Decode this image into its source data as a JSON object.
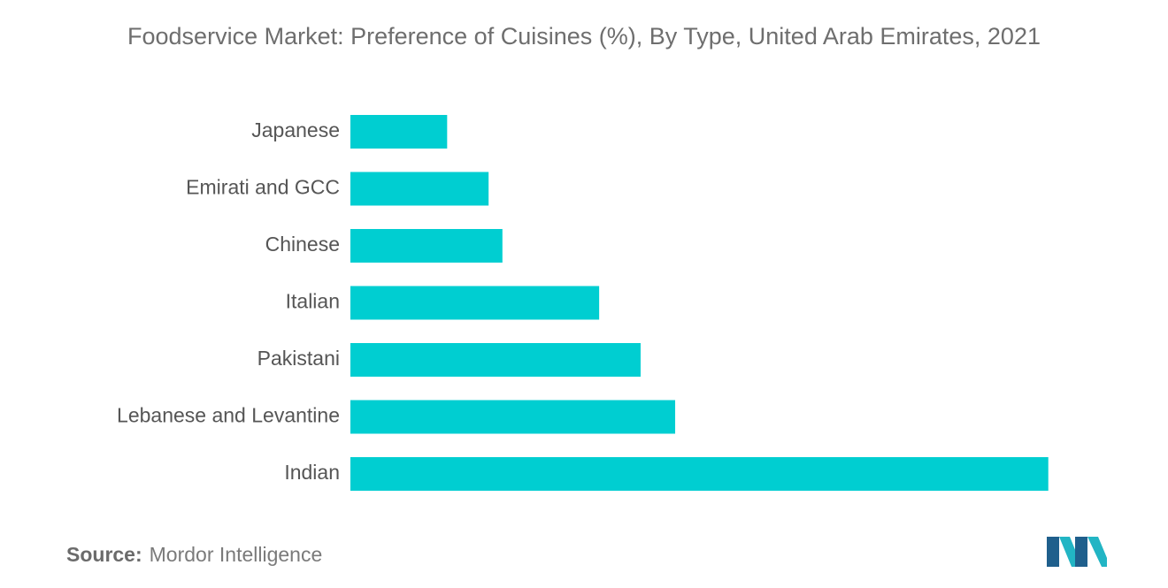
{
  "colors": {
    "bar": "#00ced1",
    "title": "#6e6e6e",
    "label": "#555555",
    "logo_dark": "#1f5f8c",
    "logo_light": "#22b5c4"
  },
  "source": {
    "label": "Source:",
    "text": "Mordor Intelligence"
  },
  "logo": {
    "icon": "mordor-intelligence-logo"
  },
  "chart_data": {
    "type": "bar",
    "orientation": "horizontal",
    "title": "Foodservice Market: Preference of Cuisines (%), By Type, United Arab Emirates, 2021",
    "xlabel": "",
    "ylabel": "",
    "categories": [
      "Japanese",
      "Emirati and GCC",
      "Chinese",
      "Italian",
      "Pakistani",
      "Lebanese and Levantine",
      "Indian"
    ],
    "values": [
      7,
      10,
      11,
      18,
      21,
      23.5,
      50.5
    ],
    "xlim": [
      0,
      55
    ],
    "grid": false,
    "legend": "none"
  }
}
